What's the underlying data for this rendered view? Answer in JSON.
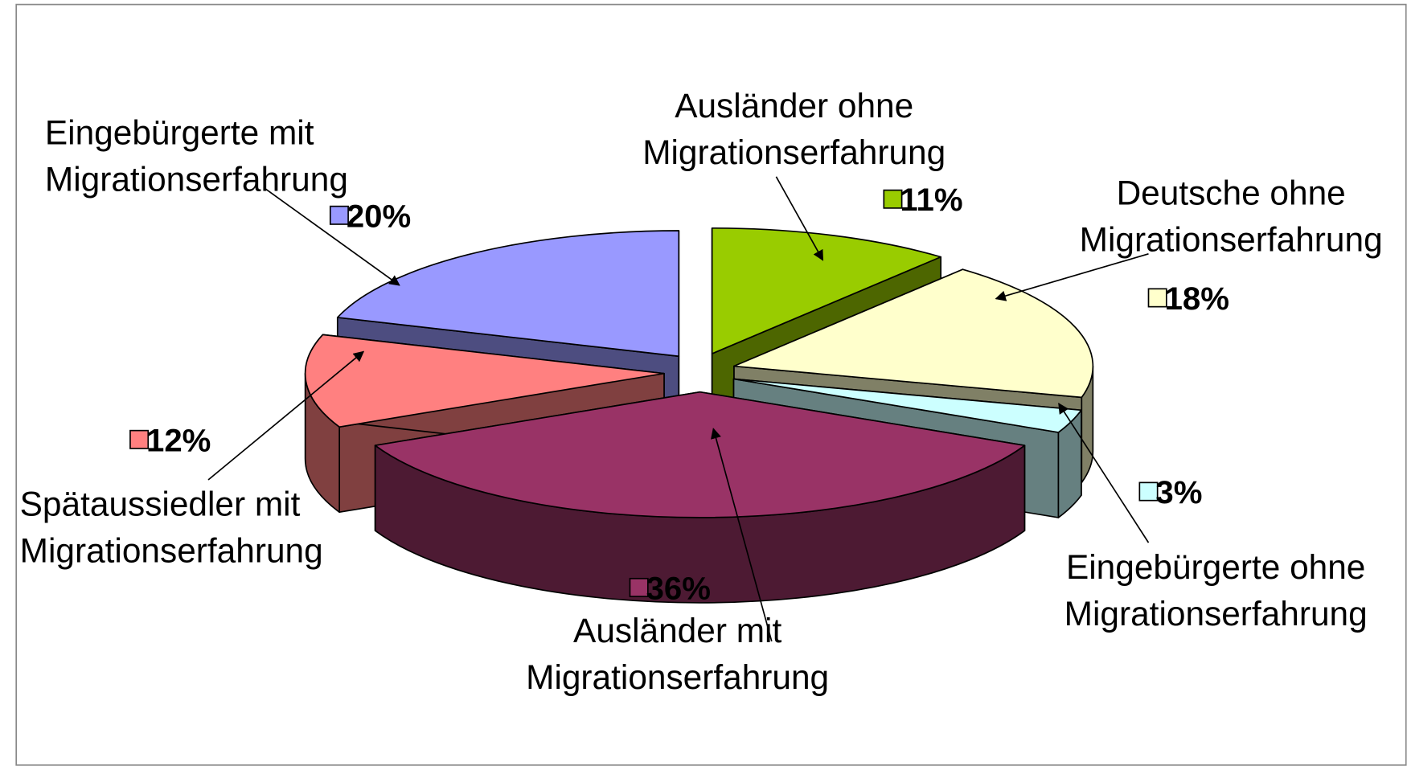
{
  "chart_data": {
    "type": "pie3d",
    "categories": [
      "Ausländer ohne Migrationserfahrung",
      "Deutsche ohne Migrationserfahrung",
      "Eingebürgerte ohne Migrationserfahrung",
      "Ausländer mit Migrationserfahrung",
      "Spätaussiedler mit Migrationserfahrung",
      "Eingebürgerte mit Migrationserfahrung"
    ],
    "values": [
      11,
      18,
      3,
      36,
      12,
      20
    ],
    "value_labels": [
      "11%",
      "18%",
      "3%",
      "36%",
      "12%",
      "20%"
    ],
    "colors": [
      "#99cc00",
      "#ffffcc",
      "#ccffff",
      "#993366",
      "#ff8080",
      "#9999ff"
    ]
  }
}
